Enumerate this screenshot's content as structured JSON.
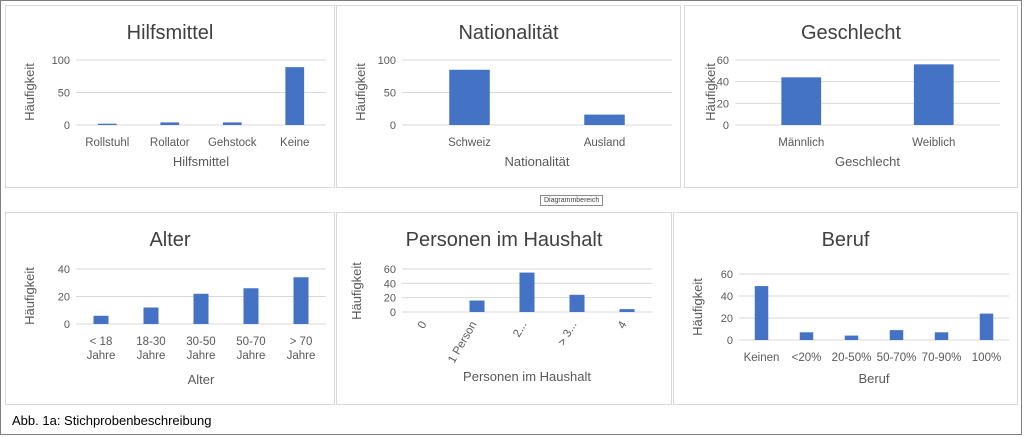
{
  "caption": "Abb. 1a: Stichprobenbeschreibung",
  "tooltip": "Diagrammbereich",
  "colors": {
    "bar": "#4472c4",
    "grid": "#d9d9d9",
    "text": "#595959"
  },
  "chart_data": [
    {
      "type": "bar",
      "title": "Hilfsmittel",
      "xlabel": "Hilfsmittel",
      "ylabel": "Häufigkeit",
      "categories": [
        [
          "Rollstuhl"
        ],
        [
          "Rollator"
        ],
        [
          "Gehstock"
        ],
        [
          "Keine"
        ]
      ],
      "values": [
        2,
        4,
        4,
        89
      ],
      "ylim": [
        0,
        100
      ],
      "yticks": [
        0,
        50,
        100
      ],
      "grid": true
    },
    {
      "type": "bar",
      "title": "Nationalität",
      "xlabel": "Nationalität",
      "ylabel": "Häufigkeit",
      "categories": [
        [
          "Schweiz"
        ],
        [
          "Ausland"
        ]
      ],
      "values": [
        85,
        16
      ],
      "ylim": [
        0,
        100
      ],
      "yticks": [
        0,
        50,
        100
      ],
      "grid": true
    },
    {
      "type": "bar",
      "title": "Geschlecht",
      "xlabel": "Geschlecht",
      "ylabel": "Häufigkeit",
      "categories": [
        [
          "Männlich"
        ],
        [
          "Weiblich"
        ]
      ],
      "values": [
        44,
        56
      ],
      "ylim": [
        0,
        60
      ],
      "yticks": [
        0,
        20,
        40,
        60
      ],
      "grid": true
    },
    {
      "type": "bar",
      "title": "Alter",
      "xlabel": "Alter",
      "ylabel": "Häufigkeit",
      "categories": [
        [
          "< 18",
          "Jahre"
        ],
        [
          "18-30",
          "Jahre"
        ],
        [
          "30-50",
          "Jahre"
        ],
        [
          "50-70",
          "Jahre"
        ],
        [
          "> 70",
          "Jahre"
        ]
      ],
      "values": [
        6,
        12,
        22,
        26,
        34
      ],
      "ylim": [
        0,
        40
      ],
      "yticks": [
        0,
        20,
        40
      ],
      "grid": true
    },
    {
      "type": "bar",
      "title": "Personen im Haushalt",
      "xlabel": "Personen im Haushalt",
      "ylabel": "Häufigkeit",
      "categories": [
        [
          "0"
        ],
        [
          "1 Person"
        ],
        [
          "2..."
        ],
        [
          "> 3..."
        ],
        [
          "4"
        ]
      ],
      "values": [
        0,
        16,
        55,
        24,
        4
      ],
      "ylim": [
        0,
        60
      ],
      "yticks": [
        0,
        20,
        40,
        60
      ],
      "rotated_labels": true,
      "grid": true
    },
    {
      "type": "bar",
      "title": "Beruf",
      "xlabel": "Beruf",
      "ylabel": "Häufigkeit",
      "categories": [
        [
          "Keinen"
        ],
        [
          "<20%"
        ],
        [
          "20-50%"
        ],
        [
          "50-70%"
        ],
        [
          "70-90%"
        ],
        [
          "100%"
        ]
      ],
      "values": [
        49,
        7,
        4,
        9,
        7,
        24
      ],
      "ylim": [
        0,
        60
      ],
      "yticks": [
        0,
        20,
        40,
        60
      ],
      "grid": true
    }
  ]
}
